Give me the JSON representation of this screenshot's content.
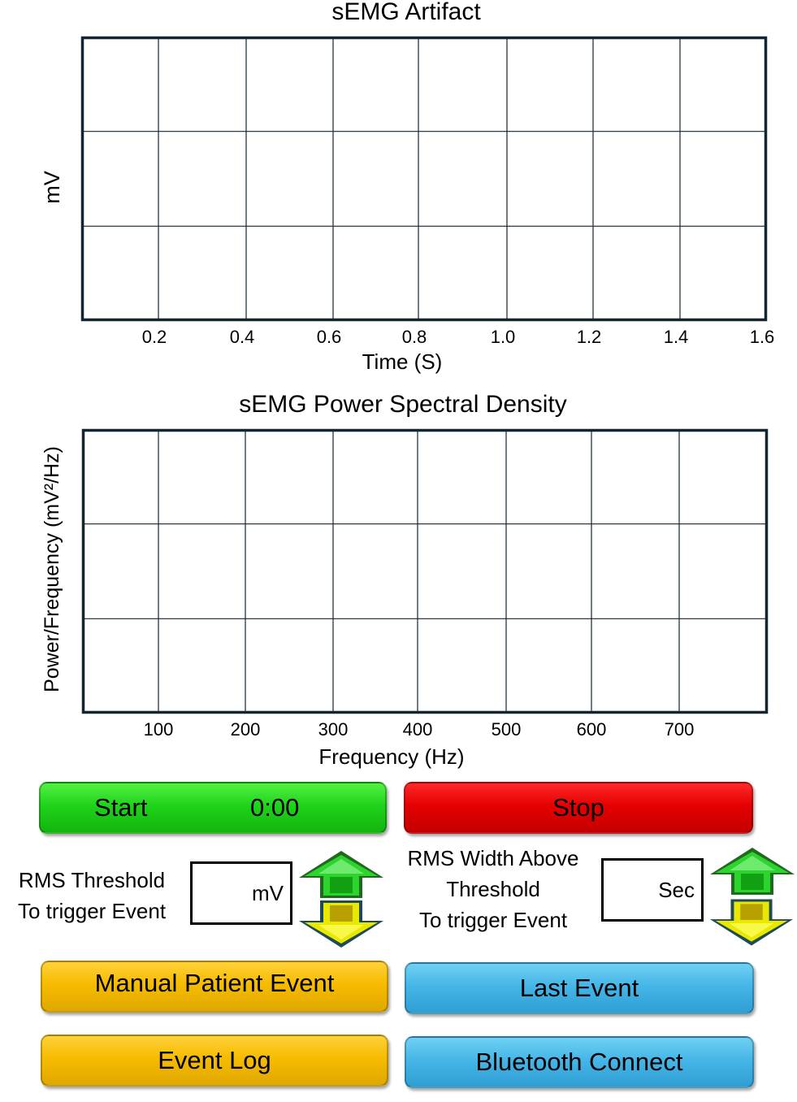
{
  "chart_data": [
    {
      "type": "line",
      "title": "sEMG Artifact",
      "xlabel": "Time (S)",
      "ylabel": "mV",
      "x_ticks": [
        "0.2",
        "0.4",
        "0.6",
        "0.8",
        "1.0",
        "1.2",
        "1.4",
        "1.6"
      ],
      "series": [],
      "grid": true
    },
    {
      "type": "line",
      "title": "sEMG Power Spectral Density",
      "xlabel": "Frequency (Hz)",
      "ylabel": "Power/Frequency (mV²/Hz)",
      "x_ticks": [
        "100",
        "200",
        "300",
        "400",
        "500",
        "600",
        "700"
      ],
      "series": [],
      "grid": true
    }
  ],
  "controls": {
    "start_label": "Start",
    "timer": "0:00",
    "stop_label": "Stop",
    "rms_threshold_label_1": "RMS Threshold",
    "rms_threshold_label_2": "To trigger Event",
    "rms_threshold_unit": "mV",
    "rms_width_label_1": "RMS Width Above",
    "rms_width_label_2": "Threshold",
    "rms_width_label_3": "To trigger Event",
    "rms_width_unit": "Sec",
    "manual_event_label": "Manual Patient Event",
    "last_event_label": "Last Event",
    "event_log_label": "Event Log",
    "bluetooth_label": "Bluetooth Connect"
  },
  "colors": {
    "plot_border": "#13252f",
    "start": "#1fd31a",
    "stop": "#e60000",
    "event": "#f7bb00",
    "connect": "#46b6e8",
    "arrow_up": "#22cc22",
    "arrow_down": "#e8e800"
  }
}
